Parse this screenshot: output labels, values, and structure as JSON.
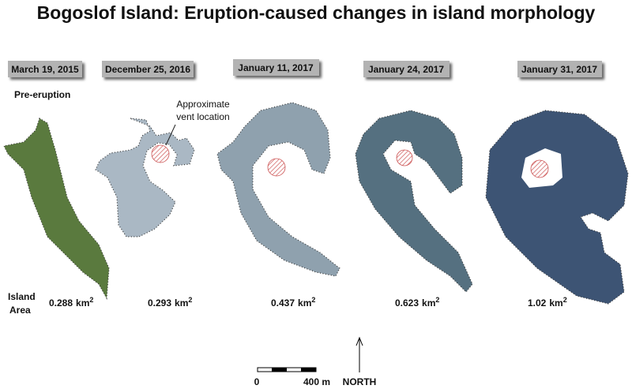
{
  "title": "Bogoslof Island: Eruption-caused changes in island morphology",
  "panels": [
    {
      "date": "March 19, 2015",
      "area": "0.288"
    },
    {
      "date": "December 25, 2016",
      "area": "0.293"
    },
    {
      "date": "January 11, 2017",
      "area": "0.437"
    },
    {
      "date": "January 24, 2017",
      "area": "0.623"
    },
    {
      "date": "January 31, 2017",
      "area": "1.02"
    }
  ],
  "pre_eruption_label": "Pre-eruption",
  "vent_label": [
    "Approximate",
    "vent location"
  ],
  "area_label": [
    "Island",
    "Area"
  ],
  "area_unit": "km",
  "area_unit_exponent": "2",
  "scale_bar": {
    "start": "0",
    "end": "400 m"
  },
  "north_label": "NORTH"
}
